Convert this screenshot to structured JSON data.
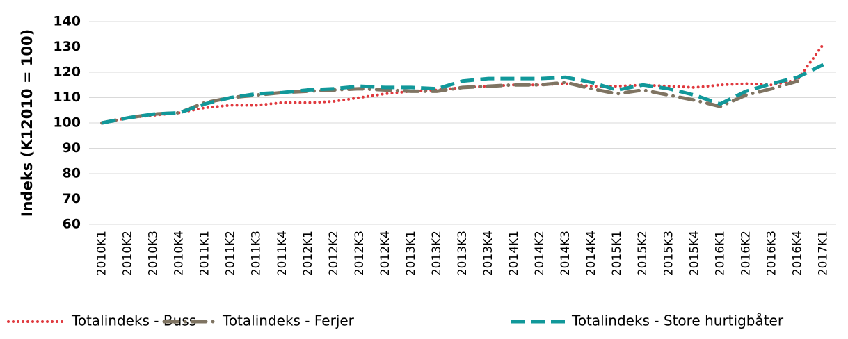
{
  "chart_data": {
    "type": "line",
    "y_label": "Indeks (K12010 = 100)",
    "categories": [
      "2010K1",
      "2010K2",
      "2010K3",
      "2010K4",
      "2011K1",
      "2011K2",
      "2011K3",
      "2011K4",
      "2012K1",
      "2012K2",
      "2012K3",
      "2012K4",
      "2013K1",
      "2013K2",
      "2013K3",
      "2013K4",
      "2014K1",
      "2014K2",
      "2014K3",
      "2014K4",
      "2015K1",
      "2015K2",
      "2015K3",
      "2015K4",
      "2016K1",
      "2016K2",
      "2016K3",
      "2016K4",
      "2017K1"
    ],
    "series": [
      {
        "name": "Totalindeks - Buss",
        "color": "#e0393e",
        "style": "dotted",
        "values": [
          100,
          102,
          103,
          104,
          106,
          107,
          107,
          108,
          108,
          108.5,
          110,
          111.5,
          112.5,
          113,
          114,
          114.5,
          115,
          115,
          115.5,
          114.5,
          114.5,
          115,
          114.5,
          114,
          115,
          115.5,
          115,
          117,
          131
        ]
      },
      {
        "name": "Totalindeks - Ferjer",
        "color": "#7f7462",
        "style": "dash-dot",
        "values": [
          100,
          102,
          103.5,
          104,
          108,
          110,
          111,
          112,
          112.5,
          113,
          113.5,
          113,
          112.5,
          112.5,
          114,
          114.5,
          115,
          115,
          116,
          113.5,
          111.5,
          113,
          111,
          109,
          106.5,
          111,
          113.5,
          116.5,
          null
        ]
      },
      {
        "name": "Totalindeks - Store hurtigbåter",
        "color": "#11989a",
        "style": "dashed",
        "values": [
          100,
          102,
          103.5,
          104,
          107.5,
          110,
          111.5,
          112,
          113,
          113.5,
          114.5,
          114,
          114,
          113.5,
          116.5,
          117.5,
          117.5,
          117.5,
          118,
          116,
          113,
          115,
          113.5,
          111,
          107.5,
          112.5,
          115.5,
          118,
          123
        ]
      }
    ],
    "ylim": [
      60,
      140
    ],
    "yticks": [
      60,
      70,
      80,
      90,
      100,
      110,
      120,
      130,
      140
    ],
    "grid": true,
    "legend": "bottom"
  }
}
